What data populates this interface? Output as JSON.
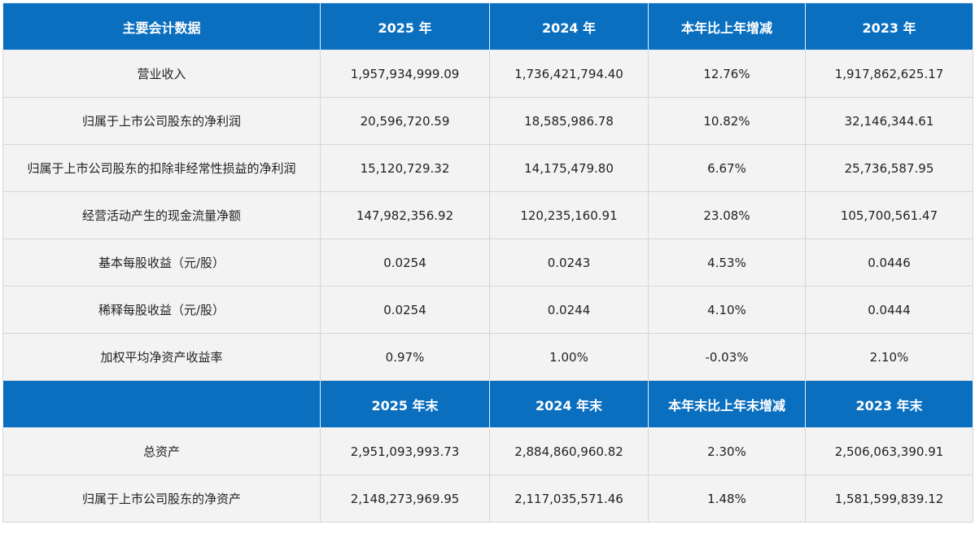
{
  "table": {
    "header": [
      "主要会计数据",
      "2025 年",
      "2024 年",
      "本年比上年增减",
      "2023 年"
    ],
    "rows": [
      [
        "营业收入",
        "1,957,934,999.09",
        "1,736,421,794.40",
        "12.76%",
        "1,917,862,625.17"
      ],
      [
        "归属于上市公司股东的净利润",
        "20,596,720.59",
        "18,585,986.78",
        "10.82%",
        "32,146,344.61"
      ],
      [
        "归属于上市公司股东的扣除非经常性损益的净利润",
        "15,120,729.32",
        "14,175,479.80",
        "6.67%",
        "25,736,587.95"
      ],
      [
        "经营活动产生的现金流量净额",
        "147,982,356.92",
        "120,235,160.91",
        "23.08%",
        "105,700,561.47"
      ],
      [
        "基本每股收益（元/股）",
        "0.0254",
        "0.0243",
        "4.53%",
        "0.0446"
      ],
      [
        "稀释每股收益（元/股）",
        "0.0254",
        "0.0244",
        "4.10%",
        "0.0444"
      ],
      [
        "加权平均净资产收益率",
        "0.97%",
        "1.00%",
        "-0.03%",
        "2.10%"
      ]
    ],
    "header2": [
      null,
      "2025 年末",
      "2024 年末",
      "本年末比上年末增减",
      "2023 年末"
    ],
    "rows2": [
      [
        "总资产",
        "2,951,093,993.73",
        "2,884,860,960.82",
        "2.30%",
        "2,506,063,390.91"
      ],
      [
        "归属于上市公司股东的净资产",
        "2,148,273,969.95",
        "2,117,035,571.46",
        "1.48%",
        "1,581,599,839.12"
      ]
    ]
  }
}
